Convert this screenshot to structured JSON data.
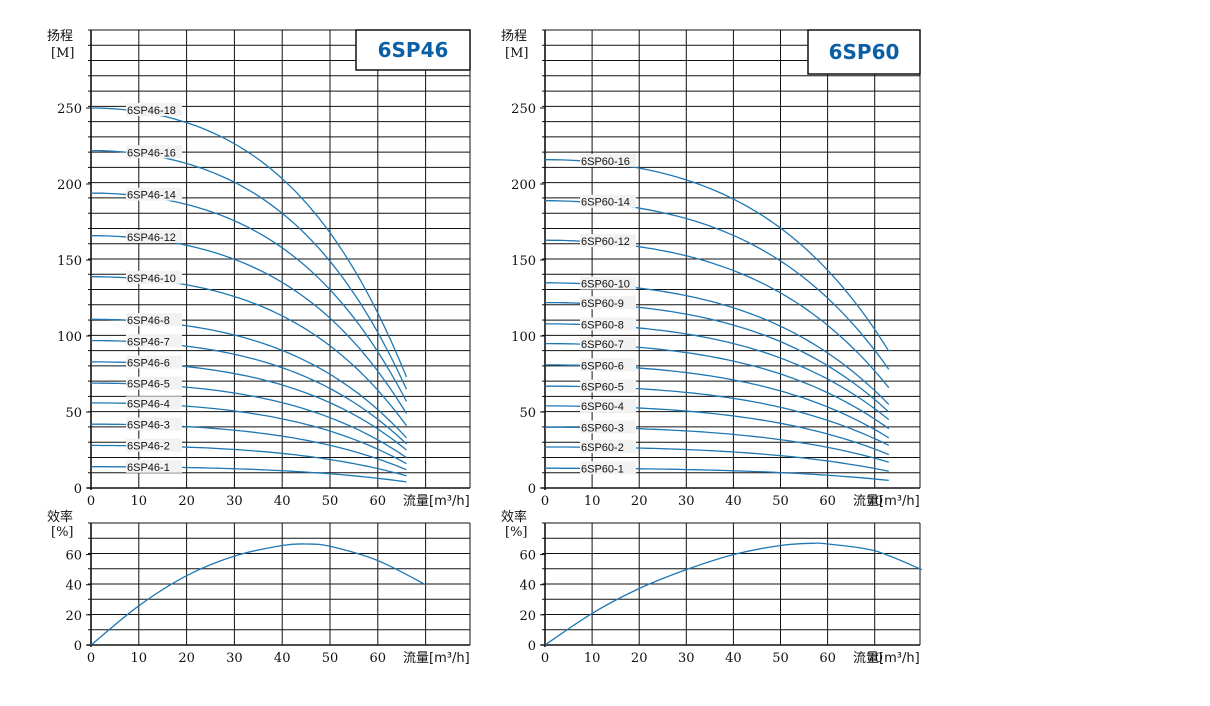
{
  "chart_data": [
    {
      "type": "line",
      "model": "6SP46",
      "y_title_top": "扬程",
      "y_title_unit": "[M]",
      "x_title": "流量[m³/h]",
      "xlim": [
        0,
        70
      ],
      "ylim": [
        0,
        300
      ],
      "x_ticks": [
        "0",
        "10",
        "20",
        "30",
        "40",
        "50",
        "60"
      ],
      "y_ticks": [
        "0",
        "50",
        "100",
        "150",
        "200",
        "250"
      ],
      "x_tick_values": [
        0,
        10,
        20,
        30,
        40,
        50,
        60
      ],
      "y_tick_values": [
        0,
        50,
        100,
        150,
        200,
        250
      ],
      "x_max_flow": 66,
      "curve_color": "#1f78b4",
      "series": [
        {
          "name": "6SP46-18",
          "h0": 250,
          "hmax": 73
        },
        {
          "name": "6SP46-16",
          "h0": 222,
          "hmax": 65
        },
        {
          "name": "6SP46-14",
          "h0": 194,
          "hmax": 57
        },
        {
          "name": "6SP46-12",
          "h0": 166,
          "hmax": 49
        },
        {
          "name": "6SP46-10",
          "h0": 139,
          "hmax": 41
        },
        {
          "name": "6SP46-8",
          "h0": 111,
          "hmax": 33
        },
        {
          "name": "6SP46-7",
          "h0": 97,
          "hmax": 29
        },
        {
          "name": "6SP46-6",
          "h0": 83,
          "hmax": 25
        },
        {
          "name": "6SP46-5",
          "h0": 69,
          "hmax": 20
        },
        {
          "name": "6SP46-4",
          "h0": 56,
          "hmax": 16
        },
        {
          "name": "6SP46-3",
          "h0": 42,
          "hmax": 12
        },
        {
          "name": "6SP46-2",
          "h0": 28,
          "hmax": 8
        },
        {
          "name": "6SP46-1",
          "h0": 14,
          "hmax": 4
        }
      ]
    },
    {
      "type": "line",
      "model": "6SP46",
      "y_title_top": "效率",
      "y_title_unit": "[%]",
      "x_title": "流量[m³/h]",
      "xlim": [
        0,
        70
      ],
      "ylim": [
        0,
        70
      ],
      "x_ticks": [
        "0",
        "10",
        "20",
        "30",
        "40",
        "50",
        "60"
      ],
      "y_ticks": [
        "0",
        "20",
        "40",
        "60"
      ],
      "x_tick_values": [
        0,
        10,
        20,
        30,
        40,
        50,
        60
      ],
      "y_tick_values": [
        0,
        20,
        40,
        60
      ],
      "curve_color": "#1f78b4",
      "series": [
        {
          "name": "",
          "x": [
            0,
            10,
            20,
            30,
            40,
            45,
            50,
            60,
            70
          ],
          "y": [
            0,
            26,
            46,
            59,
            66,
            67,
            65.5,
            56,
            40
          ]
        }
      ]
    },
    {
      "type": "line",
      "model": "6SP60",
      "y_title_top": "扬程",
      "y_title_unit": "[M]",
      "x_title": "流量[m³/h]",
      "xlim": [
        0,
        80
      ],
      "ylim": [
        0,
        300
      ],
      "x_ticks": [
        "0",
        "10",
        "20",
        "30",
        "40",
        "50",
        "60",
        "70"
      ],
      "y_ticks": [
        "0",
        "50",
        "100",
        "150",
        "200",
        "250"
      ],
      "x_tick_values": [
        0,
        10,
        20,
        30,
        40,
        50,
        60,
        70
      ],
      "y_tick_values": [
        0,
        50,
        100,
        150,
        200,
        250
      ],
      "x_max_flow": 73,
      "curve_color": "#1f78b4",
      "series": [
        {
          "name": "6SP60-16",
          "h0": 216,
          "hmax": 90
        },
        {
          "name": "6SP60-14",
          "h0": 189,
          "hmax": 78
        },
        {
          "name": "6SP60-12",
          "h0": 163,
          "hmax": 66
        },
        {
          "name": "6SP60-10",
          "h0": 135,
          "hmax": 55
        },
        {
          "name": "6SP60-9",
          "h0": 122,
          "hmax": 50
        },
        {
          "name": "6SP60-8",
          "h0": 108,
          "hmax": 45
        },
        {
          "name": "6SP60-7",
          "h0": 95,
          "hmax": 39
        },
        {
          "name": "6SP60-6",
          "h0": 81,
          "hmax": 33
        },
        {
          "name": "6SP60-5",
          "h0": 67,
          "hmax": 28
        },
        {
          "name": "6SP60-4",
          "h0": 54,
          "hmax": 22
        },
        {
          "name": "6SP60-3",
          "h0": 40,
          "hmax": 17
        },
        {
          "name": "6SP60-2",
          "h0": 27,
          "hmax": 11
        },
        {
          "name": "6SP60-1",
          "h0": 13,
          "hmax": 5
        }
      ]
    },
    {
      "type": "line",
      "model": "6SP60",
      "y_title_top": "效率",
      "y_title_unit": "[%]",
      "x_title": "流量[m³/h]",
      "xlim": [
        0,
        80
      ],
      "ylim": [
        0,
        70
      ],
      "x_ticks": [
        "0",
        "10",
        "20",
        "30",
        "40",
        "50",
        "60",
        "70"
      ],
      "y_ticks": [
        "0",
        "20",
        "40",
        "60"
      ],
      "x_tick_values": [
        0,
        10,
        20,
        30,
        40,
        50,
        60,
        70
      ],
      "y_tick_values": [
        0,
        20,
        40,
        60
      ],
      "curve_color": "#1f78b4",
      "series": [
        {
          "name": "",
          "x": [
            0,
            10,
            20,
            30,
            40,
            50,
            57,
            60,
            70,
            80
          ],
          "y": [
            0,
            21,
            37.5,
            50,
            60,
            66,
            67.5,
            67,
            62.5,
            50
          ]
        }
      ]
    }
  ]
}
